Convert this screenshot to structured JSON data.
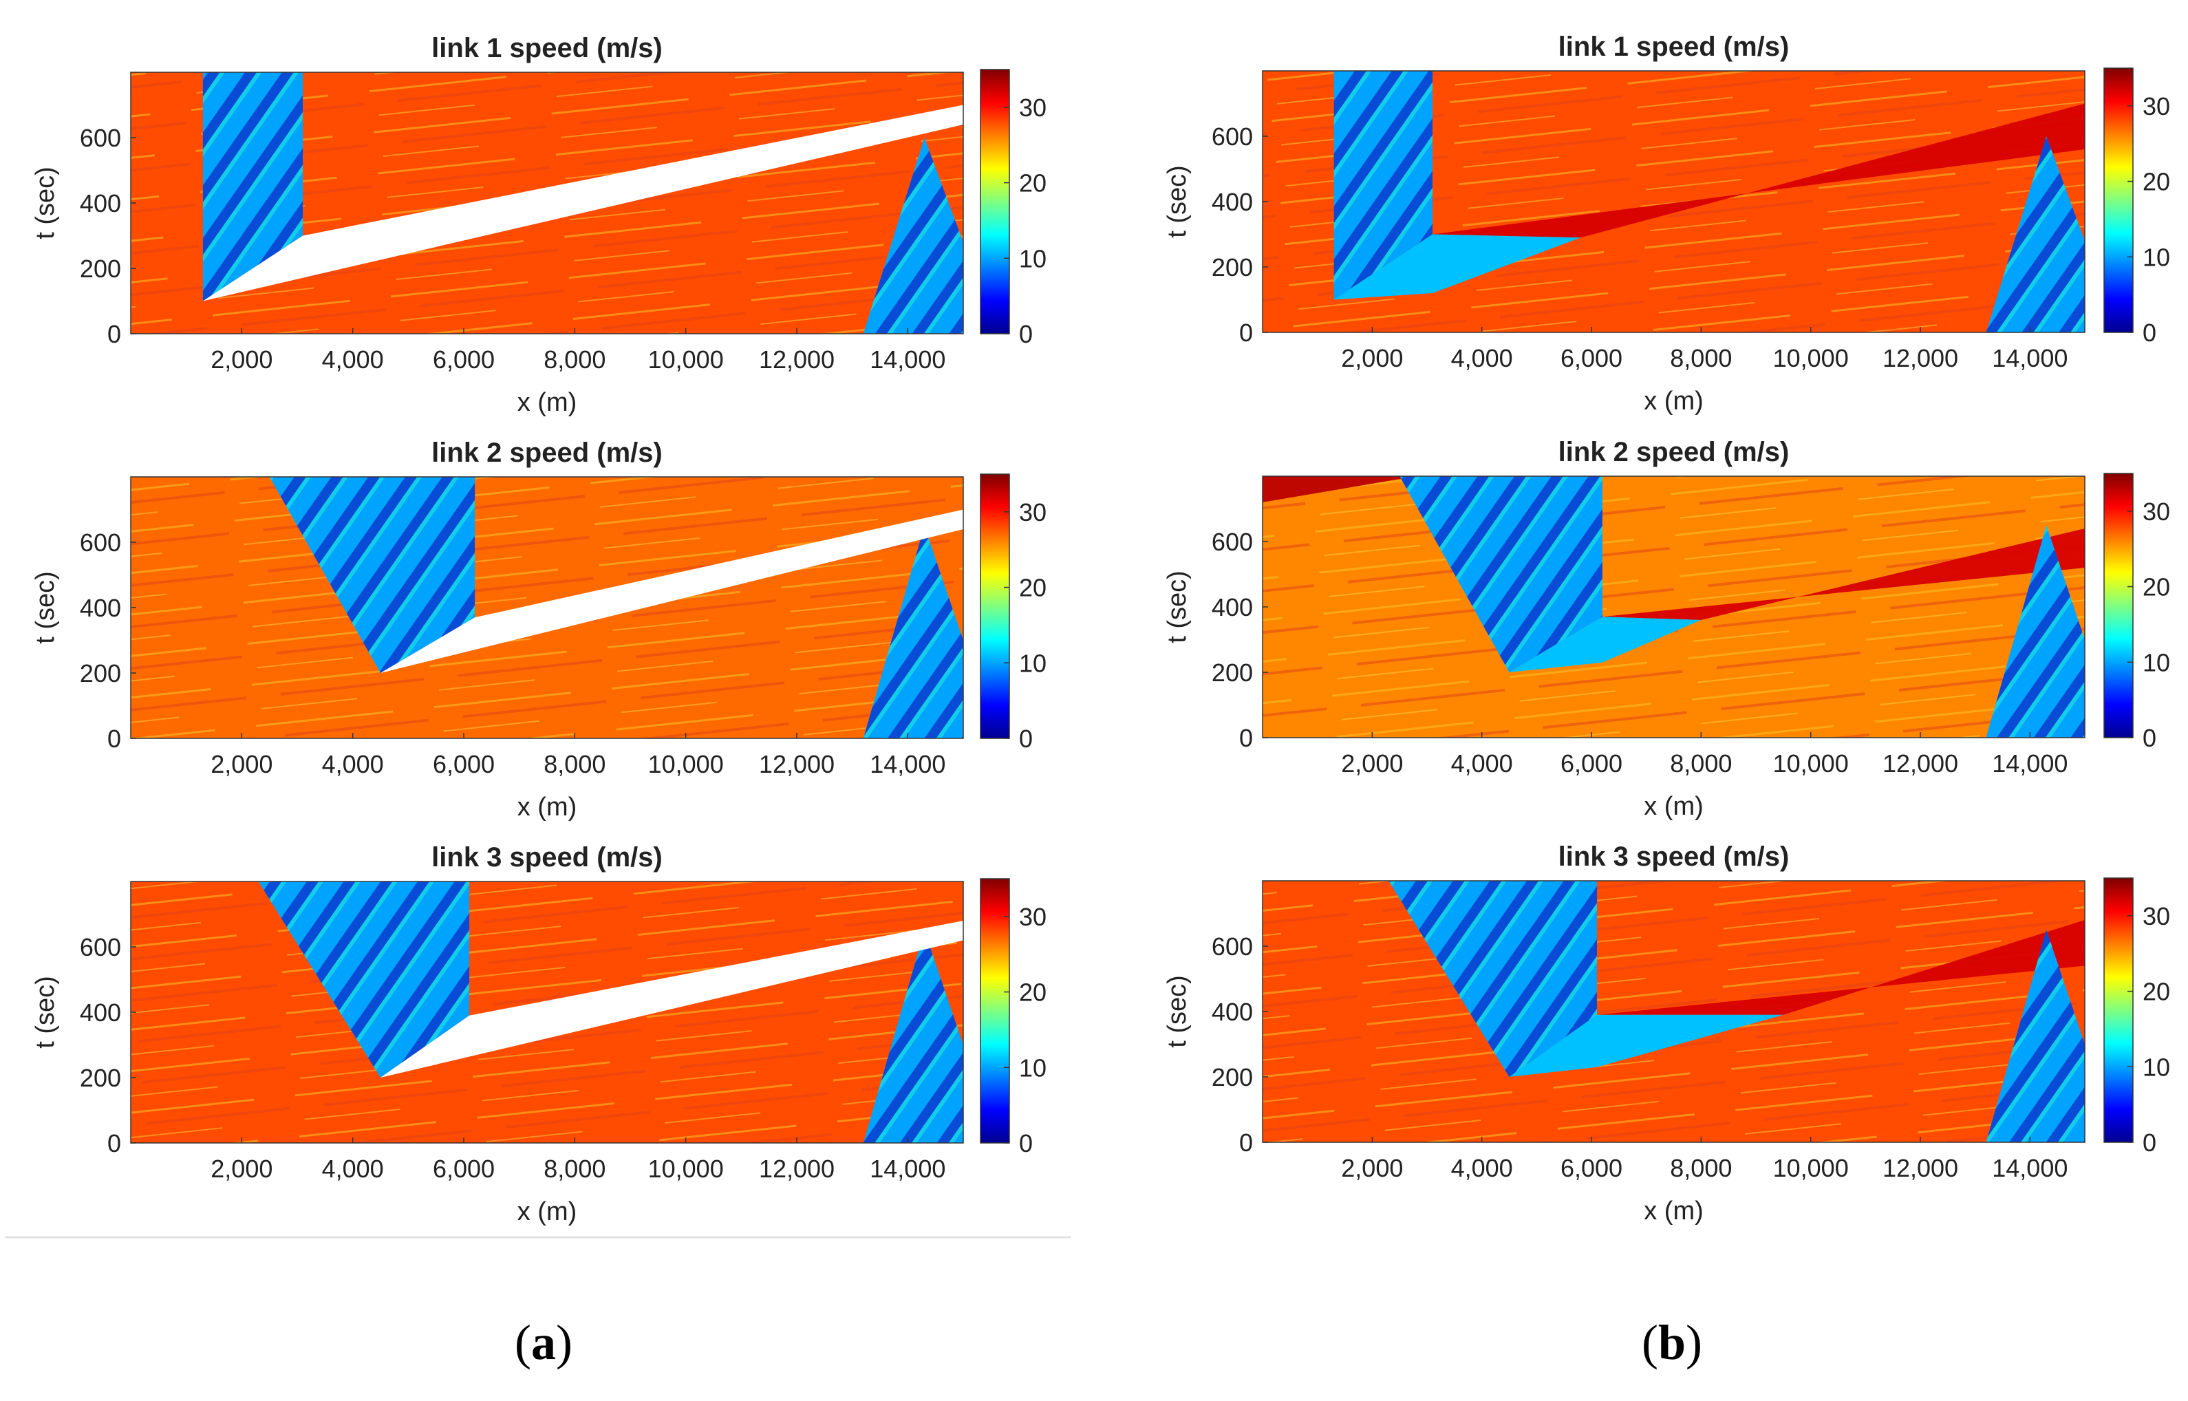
{
  "panel_labels": [
    {
      "open": "(",
      "letter": "a",
      "close": ")"
    },
    {
      "open": "(",
      "letter": "b",
      "close": ")"
    }
  ],
  "chart_data": [
    {
      "type": "heatmap",
      "column": "a",
      "title": "link 1 speed (m/s)",
      "xlabel": "x (m)",
      "ylabel": "t (sec)",
      "xlim": [
        0,
        15000
      ],
      "ylim": [
        0,
        800
      ],
      "xticks": [
        2000,
        4000,
        6000,
        8000,
        10000,
        12000,
        14000
      ],
      "xtick_labels": [
        "2,000",
        "4,000",
        "6,000",
        "8,000",
        "10,000",
        "12,000",
        "14,000"
      ],
      "yticks": [
        0,
        200,
        400,
        600
      ],
      "ytick_labels": [
        "0",
        "200",
        "400",
        "600"
      ],
      "colorbar": {
        "min": 0,
        "max": 35,
        "ticks": [
          0,
          10,
          20,
          30
        ],
        "tick_labels": [
          "0",
          "10",
          "20",
          "30"
        ]
      },
      "background_speed": 28,
      "congestion_bands": [
        {
          "x": [
            1300,
            3100,
            3100,
            1300
          ],
          "t": [
            100,
            300,
            800,
            800
          ],
          "speed": 10
        },
        {
          "x": [
            13200,
            15000,
            15000,
            14300
          ],
          "t": [
            0,
            0,
            280,
            600
          ],
          "speed": 10
        }
      ],
      "missing_regions": [
        {
          "x": [
            1300,
            3100,
            15000,
            15000
          ],
          "t": [
            100,
            300,
            700,
            640
          ],
          "speed": null
        }
      ]
    },
    {
      "type": "heatmap",
      "column": "a",
      "title": "link 2 speed (m/s)",
      "xlabel": "x (m)",
      "ylabel": "t (sec)",
      "xlim": [
        0,
        15000
      ],
      "ylim": [
        0,
        800
      ],
      "xticks": [
        2000,
        4000,
        6000,
        8000,
        10000,
        12000,
        14000
      ],
      "xtick_labels": [
        "2,000",
        "4,000",
        "6,000",
        "8,000",
        "10,000",
        "12,000",
        "14,000"
      ],
      "yticks": [
        0,
        200,
        400,
        600
      ],
      "ytick_labels": [
        "0",
        "200",
        "400",
        "600"
      ],
      "colorbar": {
        "min": 0,
        "max": 35,
        "ticks": [
          0,
          10,
          20,
          30
        ],
        "tick_labels": [
          "0",
          "10",
          "20",
          "30"
        ]
      },
      "background_speed": 27,
      "congestion_bands": [
        {
          "x": [
            4500,
            6200,
            6200,
            2500
          ],
          "t": [
            200,
            370,
            800,
            800
          ],
          "speed": 10
        },
        {
          "x": [
            13200,
            15000,
            15000,
            14300
          ],
          "t": [
            0,
            0,
            300,
            650
          ],
          "speed": 10
        }
      ],
      "missing_regions": [
        {
          "x": [
            4500,
            6200,
            15000,
            15000
          ],
          "t": [
            200,
            370,
            700,
            640
          ],
          "speed": null
        }
      ]
    },
    {
      "type": "heatmap",
      "column": "a",
      "title": "link 3 speed (m/s)",
      "xlabel": "x (m)",
      "ylabel": "t (sec)",
      "xlim": [
        0,
        15000
      ],
      "ylim": [
        0,
        800
      ],
      "xticks": [
        2000,
        4000,
        6000,
        8000,
        10000,
        12000,
        14000
      ],
      "xtick_labels": [
        "2,000",
        "4,000",
        "6,000",
        "8,000",
        "10,000",
        "12,000",
        "14,000"
      ],
      "yticks": [
        0,
        200,
        400,
        600
      ],
      "ytick_labels": [
        "0",
        "200",
        "400",
        "600"
      ],
      "colorbar": {
        "min": 0,
        "max": 35,
        "ticks": [
          0,
          10,
          20,
          30
        ],
        "tick_labels": [
          "0",
          "10",
          "20",
          "30"
        ]
      },
      "background_speed": 28,
      "congestion_bands": [
        {
          "x": [
            4500,
            6100,
            6100,
            2300
          ],
          "t": [
            200,
            390,
            800,
            800
          ],
          "speed": 10
        },
        {
          "x": [
            13200,
            15000,
            15000,
            14300
          ],
          "t": [
            0,
            0,
            300,
            650
          ],
          "speed": 10
        }
      ],
      "missing_regions": [
        {
          "x": [
            4500,
            6100,
            15000,
            15000
          ],
          "t": [
            200,
            390,
            680,
            620
          ],
          "speed": null
        }
      ]
    },
    {
      "type": "heatmap",
      "column": "b",
      "title": "link 1 speed (m/s)",
      "xlabel": "x (m)",
      "ylabel": "t (sec)",
      "xlim": [
        0,
        15000
      ],
      "ylim": [
        0,
        800
      ],
      "xticks": [
        2000,
        4000,
        6000,
        8000,
        10000,
        12000,
        14000
      ],
      "xtick_labels": [
        "2,000",
        "4,000",
        "6,000",
        "8,000",
        "10,000",
        "12,000",
        "14,000"
      ],
      "yticks": [
        0,
        200,
        400,
        600
      ],
      "ytick_labels": [
        "0",
        "200",
        "400",
        "600"
      ],
      "colorbar": {
        "min": 0,
        "max": 35,
        "ticks": [
          0,
          10,
          20,
          30
        ],
        "tick_labels": [
          "0",
          "10",
          "20",
          "30"
        ]
      },
      "background_speed": 28,
      "congestion_bands": [
        {
          "x": [
            1300,
            3100,
            3100,
            1300
          ],
          "t": [
            100,
            300,
            800,
            800
          ],
          "speed": 10
        },
        {
          "x": [
            1300,
            3100,
            5800,
            3100
          ],
          "t": [
            100,
            120,
            290,
            300
          ],
          "speed": 11
        },
        {
          "x": [
            13200,
            15000,
            15000,
            14300
          ],
          "t": [
            0,
            0,
            280,
            600
          ],
          "speed": 10
        }
      ],
      "imputed_regions": [
        {
          "x": [
            3100,
            5800,
            15000,
            15000
          ],
          "t": [
            300,
            290,
            700,
            560
          ],
          "speed": 32
        }
      ]
    },
    {
      "type": "heatmap",
      "column": "b",
      "title": "link 2 speed (m/s)",
      "xlabel": "x (m)",
      "ylabel": "t (sec)",
      "xlim": [
        0,
        15000
      ],
      "ylim": [
        0,
        800
      ],
      "xticks": [
        2000,
        4000,
        6000,
        8000,
        10000,
        12000,
        14000
      ],
      "xtick_labels": [
        "2,000",
        "4,000",
        "6,000",
        "8,000",
        "10,000",
        "12,000",
        "14,000"
      ],
      "yticks": [
        0,
        200,
        400,
        600
      ],
      "ytick_labels": [
        "0",
        "200",
        "400",
        "600"
      ],
      "colorbar": {
        "min": 0,
        "max": 35,
        "ticks": [
          0,
          10,
          20,
          30
        ],
        "tick_labels": [
          "0",
          "10",
          "20",
          "30"
        ]
      },
      "background_speed": 26,
      "congestion_bands": [
        {
          "x": [
            4500,
            6200,
            6200,
            2500
          ],
          "t": [
            200,
            370,
            800,
            800
          ],
          "speed": 10
        },
        {
          "x": [
            4500,
            6200,
            8000,
            6200
          ],
          "t": [
            200,
            230,
            360,
            370
          ],
          "speed": 11
        },
        {
          "x": [
            13200,
            15000,
            15000,
            14300
          ],
          "t": [
            0,
            0,
            300,
            650
          ],
          "speed": 10
        }
      ],
      "imputed_regions": [
        {
          "x": [
            6200,
            8000,
            15000,
            15000
          ],
          "t": [
            370,
            360,
            640,
            520
          ],
          "speed": 32
        },
        {
          "x": [
            0,
            2800,
            0
          ],
          "t": [
            720,
            800,
            800
          ],
          "speed": 33
        }
      ]
    },
    {
      "type": "heatmap",
      "column": "b",
      "title": "link 3 speed (m/s)",
      "xlabel": "x (m)",
      "ylabel": "t (sec)",
      "xlim": [
        0,
        15000
      ],
      "ylim": [
        0,
        800
      ],
      "xticks": [
        2000,
        4000,
        6000,
        8000,
        10000,
        12000,
        14000
      ],
      "xtick_labels": [
        "2,000",
        "4,000",
        "6,000",
        "8,000",
        "10,000",
        "12,000",
        "14,000"
      ],
      "yticks": [
        0,
        200,
        400,
        600
      ],
      "ytick_labels": [
        "0",
        "200",
        "400",
        "600"
      ],
      "colorbar": {
        "min": 0,
        "max": 35,
        "ticks": [
          0,
          10,
          20,
          30
        ],
        "tick_labels": [
          "0",
          "10",
          "20",
          "30"
        ]
      },
      "background_speed": 28,
      "congestion_bands": [
        {
          "x": [
            4500,
            6100,
            6100,
            2300
          ],
          "t": [
            200,
            390,
            800,
            800
          ],
          "speed": 10
        },
        {
          "x": [
            4500,
            6100,
            9500,
            6100
          ],
          "t": [
            200,
            230,
            390,
            390
          ],
          "speed": 11
        },
        {
          "x": [
            13200,
            15000,
            15000,
            14300
          ],
          "t": [
            0,
            0,
            300,
            650
          ],
          "speed": 10
        }
      ],
      "imputed_regions": [
        {
          "x": [
            6100,
            9500,
            15000,
            15000
          ],
          "t": [
            390,
            390,
            680,
            540
          ],
          "speed": 32
        }
      ]
    }
  ]
}
